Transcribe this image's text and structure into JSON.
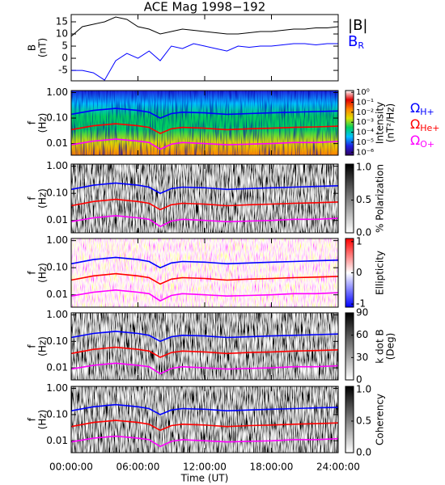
{
  "chart_data": [
    {
      "type": "line",
      "title": "ACE Mag 1998−192",
      "ylabel": [
        "B",
        "(nT)"
      ],
      "x": [
        0,
        1,
        2,
        3,
        4,
        5,
        6,
        7,
        8,
        9,
        10,
        11,
        12,
        13,
        14,
        15,
        16,
        17,
        18,
        19,
        20,
        21,
        22,
        23,
        24
      ],
      "xlim": [
        0,
        24
      ],
      "ylim": [
        -9.3,
        18
      ],
      "yticks": [
        -5,
        0,
        5,
        10,
        15
      ],
      "series": [
        {
          "name": "|B|",
          "color": "#000000",
          "values": [
            9,
            13,
            14,
            15,
            17,
            16,
            13,
            12,
            10,
            11,
            12,
            11.5,
            11,
            10.5,
            10,
            10,
            10.5,
            11,
            11,
            11.5,
            12,
            12,
            12.5,
            12.5,
            13
          ]
        },
        {
          "name": "B",
          "name_subscript": "R",
          "color": "#0000ff",
          "values": [
            -5,
            -5,
            -6,
            -9,
            -1,
            2,
            0,
            3,
            -1,
            5,
            4,
            6,
            5,
            4,
            3,
            5,
            4.5,
            5,
            5,
            5.5,
            6,
            6,
            5.5,
            6,
            6
          ]
        }
      ]
    },
    {
      "type": "spectrogram",
      "palette": "rainbow",
      "ylabel": [
        "f",
        "(Hz)"
      ],
      "ylog": true,
      "ylim": [
        0.0035,
        1.2
      ],
      "yticks": [
        {
          "value": 0.01,
          "label": "0.01"
        },
        {
          "value": 0.1,
          "label": "0.10"
        },
        {
          "value": 1,
          "label": "1.00"
        }
      ],
      "x": [
        0,
        2,
        4,
        6,
        7,
        8,
        9,
        10,
        12,
        14,
        16,
        18,
        20,
        22,
        24
      ],
      "xlim": [
        0,
        24
      ],
      "colorbar": {
        "label": [
          "Intensity",
          "(nT²/Hz)"
        ],
        "log": true,
        "lim": [
          5e-07,
          1.5
        ],
        "ticks": [
          {
            "value": 1,
            "label": "10⁰"
          },
          {
            "value": 0.1,
            "label": "10⁻¹"
          },
          {
            "value": 0.01,
            "label": "10⁻²"
          },
          {
            "value": 0.001,
            "label": "10⁻³"
          },
          {
            "value": 0.0001,
            "label": "10⁻⁴"
          },
          {
            "value": 1e-05,
            "label": "10⁻⁵"
          },
          {
            "value": 1e-06,
            "label": "10⁻⁶"
          }
        ],
        "colors": [
          "#300060",
          "#2020e0",
          "#00c0ff",
          "#00d060",
          "#e0e000",
          "#ff8000",
          "#e00000",
          "#ffffff"
        ]
      },
      "series": [
        {
          "name": "Ω",
          "name_subscript": "H+",
          "color": "#0000ff",
          "values": [
            0.14,
            0.2,
            0.24,
            0.2,
            0.17,
            0.1,
            0.15,
            0.17,
            0.16,
            0.14,
            0.15,
            0.16,
            0.17,
            0.18,
            0.19
          ]
        },
        {
          "name": "Ω",
          "name_subscript": "He+",
          "color": "#ff0000",
          "values": [
            0.035,
            0.05,
            0.06,
            0.05,
            0.043,
            0.025,
            0.038,
            0.043,
            0.04,
            0.035,
            0.038,
            0.04,
            0.043,
            0.045,
            0.048
          ]
        },
        {
          "name": "Ω",
          "name_subscript": "O+",
          "color": "#ff00ff",
          "values": [
            0.009,
            0.0125,
            0.015,
            0.0125,
            0.011,
            0.006,
            0.0095,
            0.011,
            0.01,
            0.009,
            0.0095,
            0.01,
            0.011,
            0.011,
            0.012
          ]
        }
      ]
    },
    {
      "type": "spectrogram",
      "palette": "gray",
      "ylabel": [
        "f",
        "(Hz)"
      ],
      "ylog": true,
      "ylim": [
        0.0035,
        1.2
      ],
      "yticks": [
        {
          "value": 0.01,
          "label": "0.01"
        },
        {
          "value": 0.1,
          "label": "0.10"
        },
        {
          "value": 1,
          "label": "1.00"
        }
      ],
      "x": [
        0,
        2,
        4,
        6,
        7,
        8,
        9,
        10,
        12,
        14,
        16,
        18,
        20,
        22,
        24
      ],
      "xlim": [
        0,
        24
      ],
      "colorbar": {
        "label": [
          "% Polarization"
        ],
        "log": false,
        "lim": [
          0,
          1.05
        ],
        "ticks": [
          {
            "value": 0,
            "label": "0.0"
          },
          {
            "value": 0.5,
            "label": "0.5"
          },
          {
            "value": 1,
            "label": "1.0"
          }
        ],
        "colors": [
          "#ffffff",
          "#000000"
        ]
      },
      "series": [
        {
          "color": "#0000ff",
          "values": [
            0.14,
            0.2,
            0.24,
            0.2,
            0.17,
            0.1,
            0.15,
            0.17,
            0.16,
            0.14,
            0.15,
            0.16,
            0.17,
            0.18,
            0.19
          ]
        },
        {
          "color": "#ff0000",
          "values": [
            0.035,
            0.05,
            0.06,
            0.05,
            0.043,
            0.025,
            0.038,
            0.043,
            0.04,
            0.035,
            0.038,
            0.04,
            0.043,
            0.045,
            0.048
          ]
        },
        {
          "color": "#ff00ff",
          "values": [
            0.009,
            0.0125,
            0.015,
            0.0125,
            0.011,
            0.006,
            0.0095,
            0.011,
            0.01,
            0.009,
            0.0095,
            0.01,
            0.011,
            0.011,
            0.012
          ]
        }
      ]
    },
    {
      "type": "spectrogram",
      "palette": "redblue",
      "ylabel": [
        "f",
        "(Hz)"
      ],
      "ylog": true,
      "ylim": [
        0.0035,
        1.2
      ],
      "yticks": [
        {
          "value": 0.01,
          "label": "0.01"
        },
        {
          "value": 0.1,
          "label": "0.10"
        },
        {
          "value": 1,
          "label": "1.00"
        }
      ],
      "x": [
        0,
        2,
        4,
        6,
        7,
        8,
        9,
        10,
        12,
        14,
        16,
        18,
        20,
        22,
        24
      ],
      "xlim": [
        0,
        24
      ],
      "colorbar": {
        "label": [
          "Ellipticity"
        ],
        "log": false,
        "lim": [
          -1.1,
          1.1
        ],
        "ticks": [
          -1,
          0,
          1
        ],
        "colors": [
          "#0000ff",
          "#ffffff",
          "#ff0000"
        ]
      },
      "series": [
        {
          "color": "#0000ff",
          "values": [
            0.14,
            0.2,
            0.24,
            0.2,
            0.17,
            0.1,
            0.15,
            0.17,
            0.16,
            0.14,
            0.15,
            0.16,
            0.17,
            0.18,
            0.19
          ]
        },
        {
          "color": "#ff0000",
          "values": [
            0.035,
            0.05,
            0.06,
            0.05,
            0.043,
            0.025,
            0.038,
            0.043,
            0.04,
            0.035,
            0.038,
            0.04,
            0.043,
            0.045,
            0.048
          ]
        },
        {
          "color": "#ff00ff",
          "values": [
            0.009,
            0.0125,
            0.015,
            0.0125,
            0.011,
            0.006,
            0.0095,
            0.011,
            0.01,
            0.009,
            0.0095,
            0.01,
            0.011,
            0.011,
            0.012
          ]
        }
      ]
    },
    {
      "type": "spectrogram",
      "palette": "gray",
      "ylabel": [
        "f",
        "(Hz)"
      ],
      "ylog": true,
      "ylim": [
        0.0035,
        1.2
      ],
      "yticks": [
        {
          "value": 0.01,
          "label": "0.01"
        },
        {
          "value": 0.1,
          "label": "0.10"
        },
        {
          "value": 1,
          "label": "1.00"
        }
      ],
      "x": [
        0,
        2,
        4,
        6,
        7,
        8,
        9,
        10,
        12,
        14,
        16,
        18,
        20,
        22,
        24
      ],
      "xlim": [
        0,
        24
      ],
      "colorbar": {
        "label": [
          "k dot B",
          "(Deg)"
        ],
        "log": false,
        "lim": [
          0,
          90
        ],
        "ticks": [
          0,
          30,
          60,
          90
        ],
        "colors": [
          "#ffffff",
          "#000000"
        ]
      },
      "series": [
        {
          "color": "#0000ff",
          "values": [
            0.14,
            0.2,
            0.24,
            0.2,
            0.17,
            0.1,
            0.15,
            0.17,
            0.16,
            0.14,
            0.15,
            0.16,
            0.17,
            0.18,
            0.19
          ]
        },
        {
          "color": "#ff0000",
          "values": [
            0.035,
            0.05,
            0.06,
            0.05,
            0.043,
            0.025,
            0.038,
            0.043,
            0.04,
            0.035,
            0.038,
            0.04,
            0.043,
            0.045,
            0.048
          ]
        },
        {
          "color": "#ff00ff",
          "values": [
            0.009,
            0.0125,
            0.015,
            0.0125,
            0.011,
            0.006,
            0.0095,
            0.011,
            0.01,
            0.009,
            0.0095,
            0.01,
            0.011,
            0.011,
            0.012
          ]
        }
      ]
    },
    {
      "type": "spectrogram",
      "palette": "gray",
      "ylabel": [
        "f",
        "(Hz)"
      ],
      "ylog": true,
      "ylim": [
        0.0035,
        1.2
      ],
      "yticks": [
        {
          "value": 0.01,
          "label": "0.01"
        },
        {
          "value": 0.1,
          "label": "0.10"
        },
        {
          "value": 1,
          "label": "1.00"
        }
      ],
      "x": [
        0,
        2,
        4,
        6,
        7,
        8,
        9,
        10,
        12,
        14,
        16,
        18,
        20,
        22,
        24
      ],
      "xlim": [
        0,
        24
      ],
      "xticks": [
        {
          "value": 0,
          "label": "00:00:00"
        },
        {
          "value": 6,
          "label": "06:00:00"
        },
        {
          "value": 12,
          "label": "12:00:00"
        },
        {
          "value": 18,
          "label": "18:00:00"
        },
        {
          "value": 24,
          "label": "24:00:00"
        }
      ],
      "xlabel": "Time (UT)",
      "colorbar": {
        "label": [
          "Coherency"
        ],
        "log": false,
        "lim": [
          0,
          1.05
        ],
        "ticks": [
          {
            "value": 0,
            "label": "0.0"
          },
          {
            "value": 0.5,
            "label": "0.5"
          },
          {
            "value": 1,
            "label": "1.0"
          }
        ],
        "colors": [
          "#ffffff",
          "#000000"
        ]
      },
      "series": [
        {
          "color": "#0000ff",
          "values": [
            0.14,
            0.2,
            0.24,
            0.2,
            0.17,
            0.1,
            0.15,
            0.17,
            0.16,
            0.14,
            0.15,
            0.16,
            0.17,
            0.18,
            0.19
          ]
        },
        {
          "color": "#ff0000",
          "values": [
            0.035,
            0.05,
            0.06,
            0.05,
            0.043,
            0.025,
            0.038,
            0.043,
            0.04,
            0.035,
            0.038,
            0.04,
            0.043,
            0.045,
            0.048
          ]
        },
        {
          "color": "#ff00ff",
          "values": [
            0.009,
            0.0125,
            0.015,
            0.0125,
            0.011,
            0.006,
            0.0095,
            0.011,
            0.01,
            0.009,
            0.0095,
            0.01,
            0.011,
            0.011,
            0.012
          ]
        }
      ]
    }
  ]
}
